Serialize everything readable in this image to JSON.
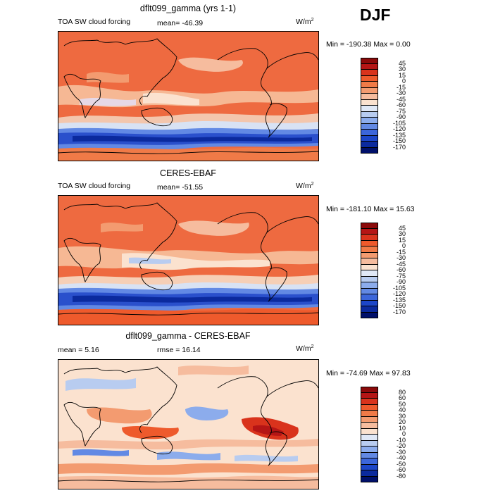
{
  "season": "DJF",
  "units_symbol": "W/m",
  "units_exp": "2",
  "panels": [
    {
      "title": "dflt099_gamma (yrs 1-1)",
      "left_label": "TOA SW cloud forcing",
      "mean_label": "mean= -46.39",
      "minmax": "Min = -190.38 Max =    0.00",
      "colorbar": [
        "45",
        "30",
        "15",
        "0",
        "-15",
        "-30",
        "-45",
        "-60",
        "-75",
        "-90",
        "-105",
        "-120",
        "-135",
        "-150",
        "-170"
      ],
      "colors": [
        "#8b0a0a",
        "#b51515",
        "#d9331c",
        "#ee5a2c",
        "#f07a47",
        "#f39b70",
        "#f6bc9e",
        "#fbe2cf",
        "#e0e8f6",
        "#b8ccf0",
        "#8cacec",
        "#6289e4",
        "#3c66da",
        "#1c46c8",
        "#0b2a9e",
        "#00106a"
      ]
    },
    {
      "title": "CERES-EBAF",
      "left_label": "TOA SW cloud forcing",
      "mean_label": "mean= -51.55",
      "minmax": "Min = -181.10 Max =  15.63",
      "colorbar": [
        "45",
        "30",
        "15",
        "0",
        "-15",
        "-30",
        "-45",
        "-60",
        "-75",
        "-90",
        "-105",
        "-120",
        "-135",
        "-150",
        "-170"
      ],
      "colors": [
        "#8b0a0a",
        "#b51515",
        "#d9331c",
        "#ee5a2c",
        "#f07a47",
        "#f39b70",
        "#f6bc9e",
        "#fbe2cf",
        "#e0e8f6",
        "#b8ccf0",
        "#8cacec",
        "#6289e4",
        "#3c66da",
        "#1c46c8",
        "#0b2a9e",
        "#00106a"
      ]
    },
    {
      "title": "dflt099_gamma - CERES-EBAF",
      "left_label": "mean =    5.16",
      "mean_label": "rmse =   16.14",
      "minmax": "Min = -74.69 Max =  97.83",
      "colorbar": [
        "80",
        "60",
        "50",
        "40",
        "30",
        "20",
        "10",
        "0",
        "-10",
        "-20",
        "-30",
        "-40",
        "-50",
        "-60",
        "-80"
      ],
      "colors": [
        "#8b0a0a",
        "#b51515",
        "#d9331c",
        "#ee5a2c",
        "#f07a47",
        "#f39b70",
        "#f6bc9e",
        "#fbe2cf",
        "#e0e8f6",
        "#b8ccf0",
        "#8cacec",
        "#6289e4",
        "#3c66da",
        "#1c46c8",
        "#0b2a9e",
        "#00106a"
      ]
    }
  ]
}
